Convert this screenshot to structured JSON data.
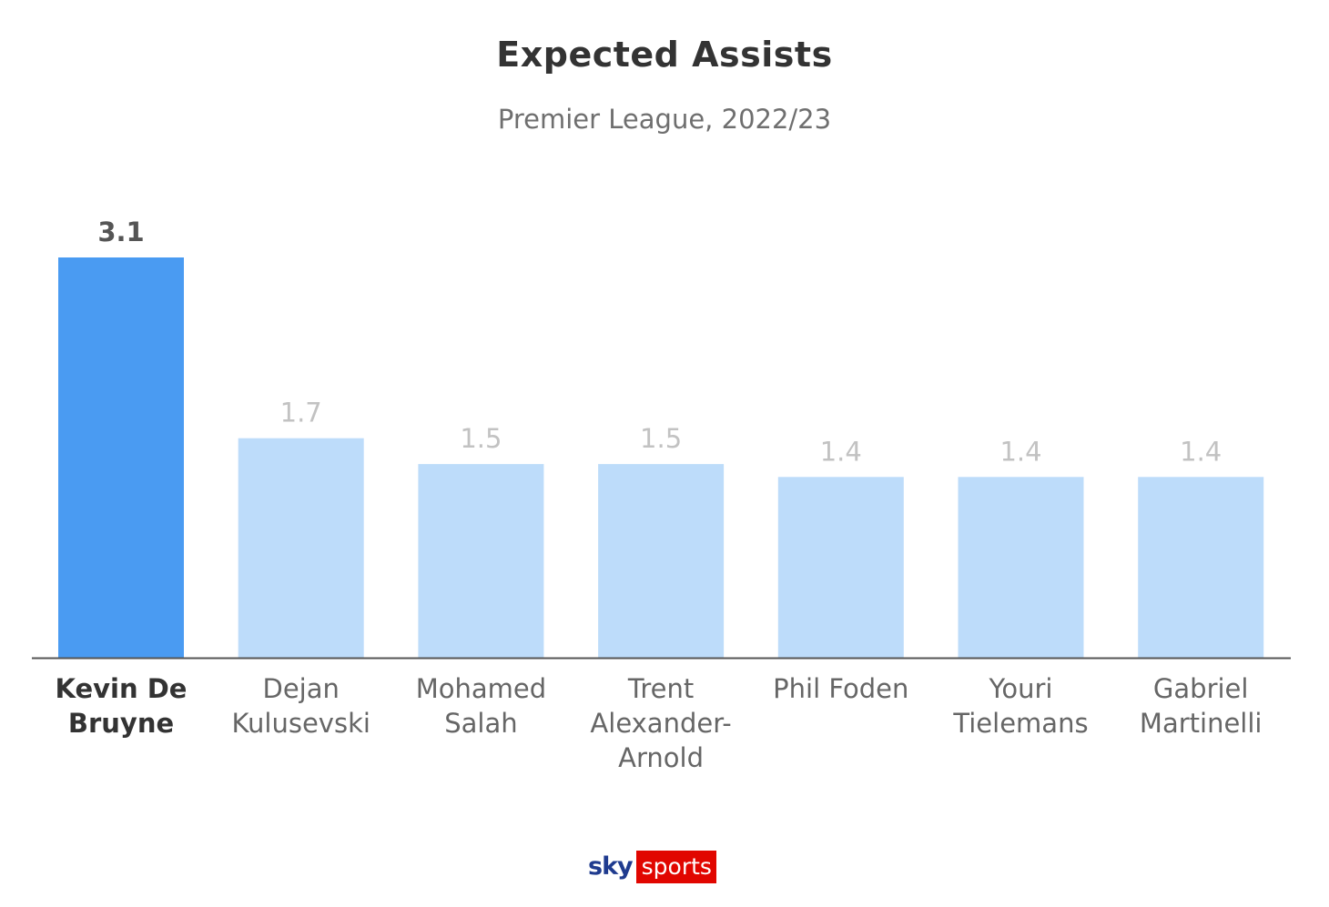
{
  "title": "Expected Assists",
  "subtitle": "Premier League, 2022/23",
  "logo": {
    "sky": "sky",
    "sports": "sports"
  },
  "colors": {
    "highlight": "#4a9bf2",
    "bar": "#bddcfa",
    "highlight_label": "#555555",
    "label": "#c2c2c2",
    "category_highlight": "#333333",
    "category": "#666666",
    "axis": "#555555",
    "logo_blue": "#1f3b8f",
    "logo_red": "#e10600"
  },
  "chart_data": {
    "type": "bar",
    "title": "Expected Assists",
    "subtitle": "Premier League, 2022/23",
    "categories": [
      [
        "Kevin De",
        "Bruyne"
      ],
      [
        "Dejan",
        "Kulusevski"
      ],
      [
        "Mohamed",
        "Salah"
      ],
      [
        "Trent",
        "Alexander-",
        "Arnold"
      ],
      [
        "Phil Foden"
      ],
      [
        "Youri",
        "Tielemans"
      ],
      [
        "Gabriel",
        "Martinelli"
      ]
    ],
    "values": [
      3.1,
      1.7,
      1.5,
      1.5,
      1.4,
      1.4,
      1.4
    ],
    "value_labels": [
      "3.1",
      "1.7",
      "1.5",
      "1.5",
      "1.4",
      "1.4",
      "1.4"
    ],
    "highlight_index": 0,
    "ylim": [
      0,
      3.1
    ],
    "xlabel": "",
    "ylabel": "",
    "grid": false,
    "legend": "none"
  }
}
